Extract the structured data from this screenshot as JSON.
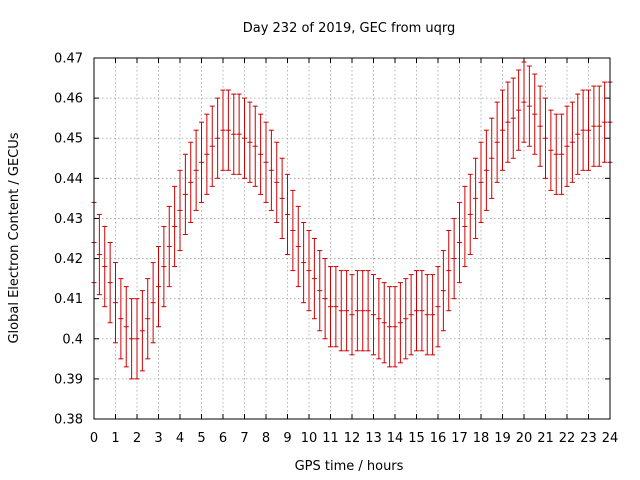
{
  "chart_data": {
    "type": "scatter",
    "title": "Day 232 of 2019, GEC from uqrg",
    "xlabel": "GPS time / hours",
    "ylabel": "Global Electron Content / GECUs",
    "xlim": [
      0,
      24
    ],
    "ylim": [
      0.38,
      0.47
    ],
    "xticks": [
      0,
      1,
      2,
      3,
      4,
      5,
      6,
      7,
      8,
      9,
      10,
      11,
      12,
      13,
      14,
      15,
      16,
      17,
      18,
      19,
      20,
      21,
      22,
      23,
      24
    ],
    "yticks": [
      0.38,
      0.39,
      0.4,
      0.41,
      0.42,
      0.43,
      0.44,
      0.45,
      0.46,
      0.47
    ],
    "ytick_labels": [
      "0.38",
      "0.39",
      "0.4",
      "0.41",
      "0.42",
      "0.43",
      "0.44",
      "0.45",
      "0.46",
      "0.47"
    ],
    "grid": true,
    "error_half_width": 0.01,
    "series": [
      {
        "name": "GEC",
        "color": "#cc0000",
        "x": [
          0.0,
          0.25,
          0.5,
          0.75,
          1.0,
          1.25,
          1.5,
          1.75,
          2.0,
          2.25,
          2.5,
          2.75,
          3.0,
          3.25,
          3.5,
          3.75,
          4.0,
          4.25,
          4.5,
          4.75,
          5.0,
          5.25,
          5.5,
          5.75,
          6.0,
          6.25,
          6.5,
          6.75,
          7.0,
          7.25,
          7.5,
          7.75,
          8.0,
          8.25,
          8.5,
          8.75,
          9.0,
          9.25,
          9.5,
          9.75,
          10.0,
          10.25,
          10.5,
          10.75,
          11.0,
          11.25,
          11.5,
          11.75,
          12.0,
          12.25,
          12.5,
          12.75,
          13.0,
          13.25,
          13.5,
          13.75,
          14.0,
          14.25,
          14.5,
          14.75,
          15.0,
          15.25,
          15.5,
          15.75,
          16.0,
          16.25,
          16.5,
          16.75,
          17.0,
          17.25,
          17.5,
          17.75,
          18.0,
          18.25,
          18.5,
          18.75,
          19.0,
          19.25,
          19.5,
          19.75,
          20.0,
          20.25,
          20.5,
          20.75,
          21.0,
          21.25,
          21.5,
          21.75,
          22.0,
          22.25,
          22.5,
          22.75,
          23.0,
          23.25,
          23.5,
          23.75,
          24.0
        ],
        "values": [
          0.424,
          0.421,
          0.418,
          0.414,
          0.409,
          0.405,
          0.403,
          0.4,
          0.4,
          0.402,
          0.405,
          0.409,
          0.413,
          0.418,
          0.423,
          0.428,
          0.432,
          0.436,
          0.439,
          0.442,
          0.444,
          0.446,
          0.448,
          0.45,
          0.452,
          0.452,
          0.451,
          0.451,
          0.45,
          0.449,
          0.448,
          0.446,
          0.444,
          0.442,
          0.439,
          0.435,
          0.431,
          0.427,
          0.423,
          0.419,
          0.417,
          0.415,
          0.412,
          0.41,
          0.408,
          0.408,
          0.407,
          0.407,
          0.406,
          0.407,
          0.407,
          0.407,
          0.406,
          0.405,
          0.404,
          0.403,
          0.403,
          0.404,
          0.405,
          0.406,
          0.407,
          0.407,
          0.406,
          0.406,
          0.408,
          0.412,
          0.417,
          0.42,
          0.424,
          0.428,
          0.431,
          0.435,
          0.439,
          0.442,
          0.445,
          0.449,
          0.452,
          0.454,
          0.455,
          0.457,
          0.459,
          0.458,
          0.456,
          0.453,
          0.45,
          0.447,
          0.446,
          0.446,
          0.448,
          0.449,
          0.451,
          0.452,
          0.452,
          0.453,
          0.453,
          0.454,
          0.454
        ]
      }
    ]
  }
}
